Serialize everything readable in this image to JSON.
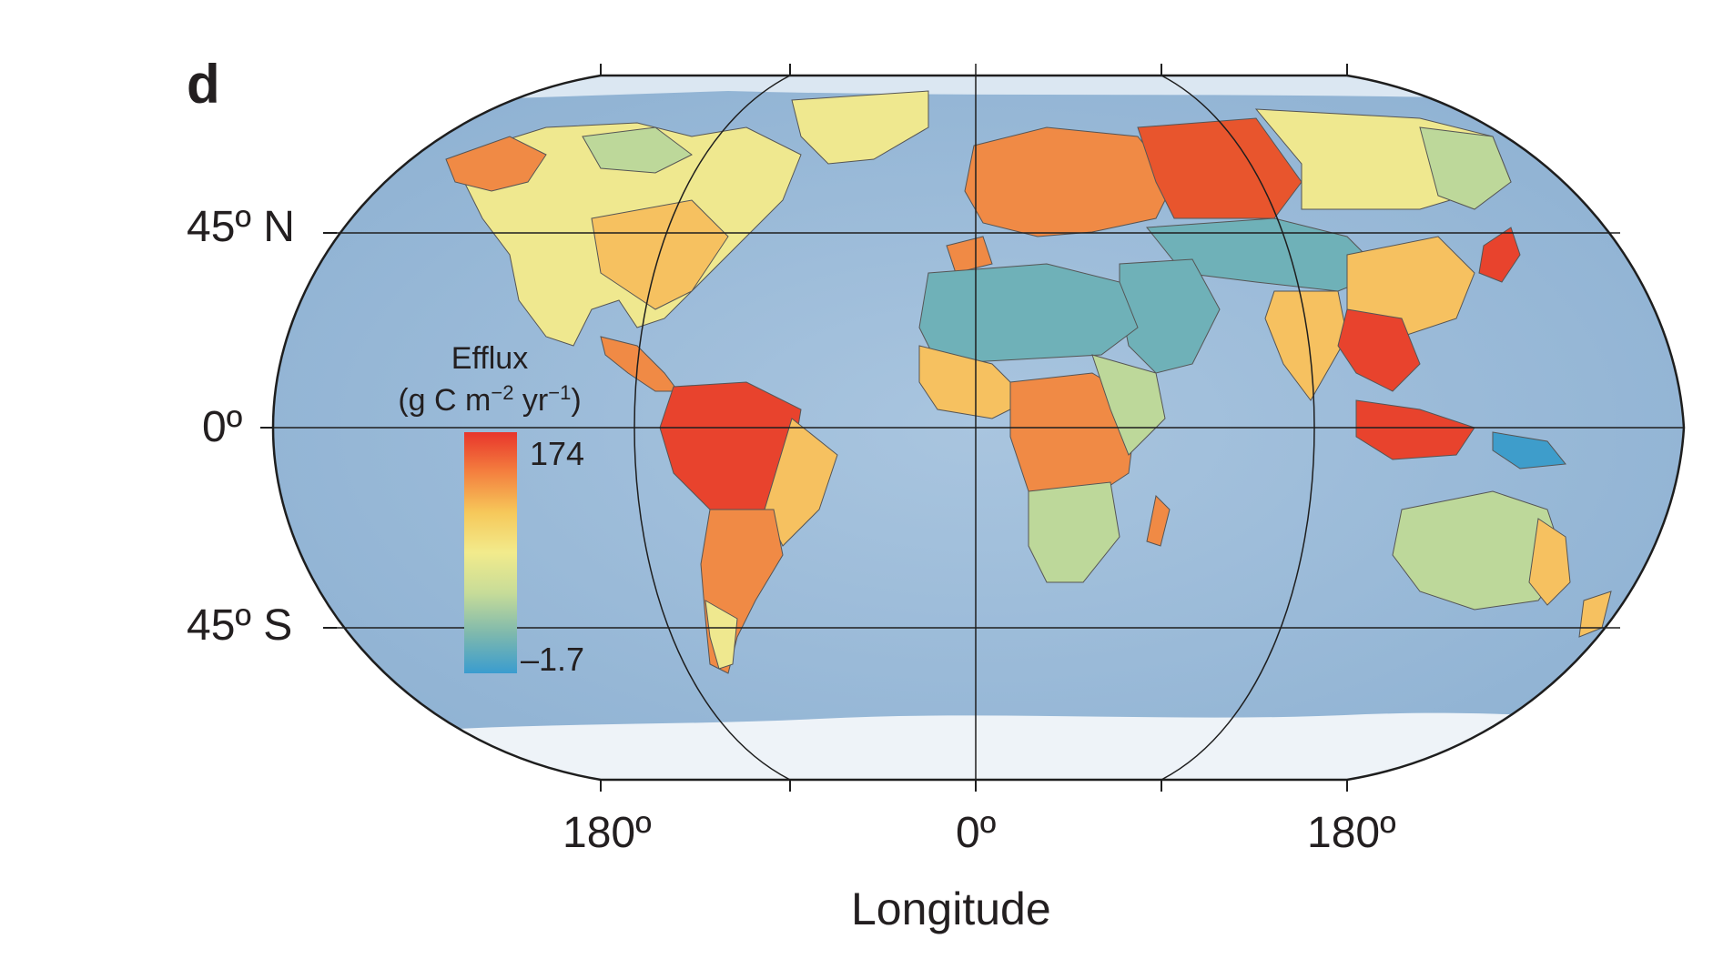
{
  "panel_label": "d",
  "latitude_labels": {
    "north": "45º N",
    "equator": "0º",
    "south": "45º S"
  },
  "longitude_labels": {
    "left": "180º",
    "center": "0º",
    "right": "180º"
  },
  "x_axis_title": "Longitude",
  "legend": {
    "title_line1": "Efflux",
    "title_line2_prefix": "(g C m",
    "title_exp1": "−2",
    "title_mid": " yr",
    "title_exp2": "−1",
    "title_suffix": ")",
    "max_label": "174",
    "min_label": "–1.7",
    "max_value": 174,
    "min_value": -1.7,
    "color_stops": [
      "#e8352b",
      "#f4803f",
      "#f6c85a",
      "#f2eb8c",
      "#c7dc98",
      "#7fb9ad",
      "#3a9ccf"
    ]
  },
  "colors": {
    "ocean": "#9fbcd8",
    "ocean_light": "#c6d8ea",
    "ice": "#eef3f8",
    "outline": "#1e1e1e",
    "high": "#e8432d",
    "med_high": "#f08a45",
    "medium": "#f6c160",
    "low_med": "#efe88f",
    "low": "#bdd89a",
    "very_low": "#6fb1b8",
    "lowest": "#3e9dcb"
  }
}
